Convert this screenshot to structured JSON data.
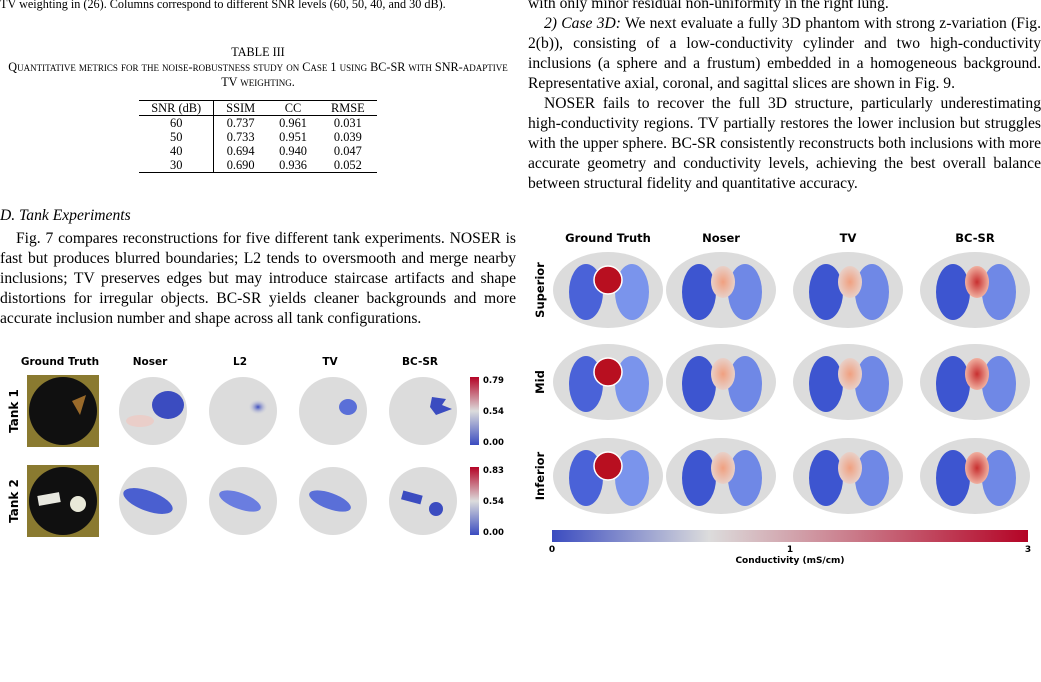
{
  "left": {
    "fig_caption_tail": "TV weighting in (26). Columns correspond to different SNR levels (60, 50, 40, and 30 dB).",
    "table": {
      "number": "TABLE III",
      "caption": "Quantitative metrics for the noise-robustness study on Case 1 using BC-SR with SNR-adaptive TV weighting.",
      "headers": [
        "SNR (dB)",
        "SSIM",
        "CC",
        "RMSE"
      ],
      "rows": [
        [
          "60",
          "0.737",
          "0.961",
          "0.031"
        ],
        [
          "50",
          "0.733",
          "0.951",
          "0.039"
        ],
        [
          "40",
          "0.694",
          "0.940",
          "0.047"
        ],
        [
          "30",
          "0.690",
          "0.936",
          "0.052"
        ]
      ]
    },
    "section_title": "D. Tank Experiments",
    "paragraph": "Fig. 7 compares reconstructions for five different tank experiments. NOSER is fast but produces blurred boundaries; L2 tends to oversmooth and merge nearby inclusions; TV preserves edges but may introduce staircase artifacts and shape distortions for irregular objects. BC-SR yields cleaner backgrounds and more accurate inclusion number and shape across all tank configurations.",
    "figure": {
      "col_headers": [
        "Ground Truth",
        "Noser",
        "L2",
        "TV",
        "BC-SR"
      ],
      "rows": [
        {
          "label": "Tank 1",
          "cb_max": "0.79",
          "cb_mid": "0.54",
          "cb_min": "0.00"
        },
        {
          "label": "Tank 2",
          "cb_max": "0.83",
          "cb_mid": "0.54",
          "cb_min": "0.00"
        }
      ]
    }
  },
  "right": {
    "top_line": "with only minor residual non-uniformity in the right lung.",
    "case_label": "2) Case 3D:",
    "case_text": " We next evaluate a fully 3D phantom with strong z-variation (Fig. 2(b)), consisting of a low-conductivity cylinder and two high-conductivity inclusions (a sphere and a frustum) embedded in a homogeneous background. Representative axial, coronal, and sagittal slices are shown in Fig. 9.",
    "paragraph2": "NOSER fails to recover the full 3D structure, particularly underestimating high-conductivity regions. TV partially restores the lower inclusion but struggles with the upper sphere. BC-SR consistently reconstructs both inclusions with more accurate geometry and conductivity levels, achieving the best overall balance between structural fidelity and quantitative accuracy.",
    "figure": {
      "col_headers": [
        "Ground Truth",
        "Noser",
        "TV",
        "BC-SR"
      ],
      "row_labels": [
        "Superior",
        "Mid",
        "Inferior"
      ],
      "colorbar_ticks": [
        "0",
        "1",
        "3"
      ],
      "colorbar_label": "Conductivity (mS/cm)"
    }
  }
}
